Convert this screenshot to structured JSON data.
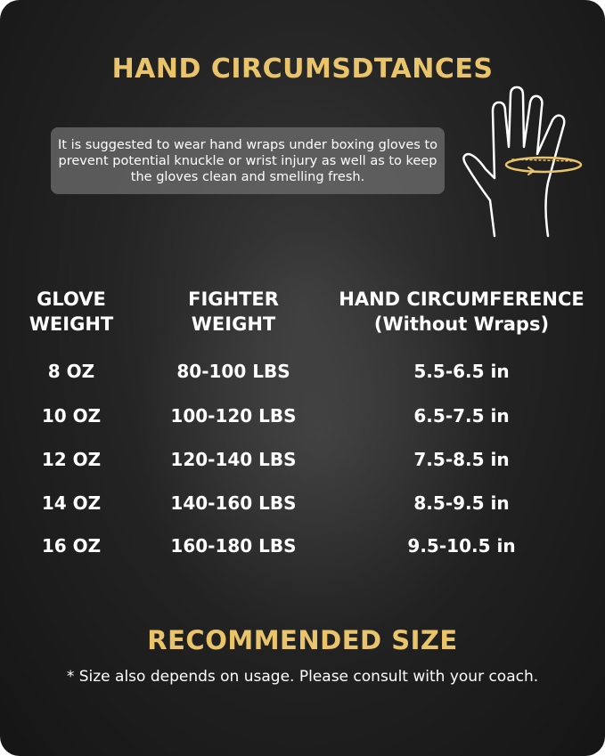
{
  "title": "HAND CIRCUMSDTANCES",
  "note": "It is suggested to wear hand wraps under boxing gloves to prevent potential knuckle or wrist injury as well as to keep the gloves clean and smelling fresh.",
  "table": {
    "headers": [
      {
        "line1": "GLOVE",
        "line2": "WEIGHT"
      },
      {
        "line1": "FIGHTER",
        "line2": "WEIGHT"
      },
      {
        "line1": "HAND CIRCUMFERENCE",
        "line2": "(Without Wraps)"
      }
    ],
    "rows": [
      [
        "8 OZ",
        "80-100 LBS",
        "5.5-6.5 in"
      ],
      [
        "10 OZ",
        "100-120 LBS",
        "6.5-7.5 in"
      ],
      [
        "12 OZ",
        "120-140 LBS",
        "7.5-8.5 in"
      ],
      [
        "14 OZ",
        "140-160 LBS",
        "8.5-9.5 in"
      ],
      [
        "16 OZ",
        "160-180 LBS",
        "9.5-10.5 in"
      ]
    ]
  },
  "recommended_title": "RECOMMENDED SIZE",
  "footnote": "* Size also depends on usage. Please consult with your coach.",
  "colors": {
    "accent": "#e9c46a",
    "background": "#222222"
  },
  "icons": {
    "hand": "hand-measure-icon"
  }
}
